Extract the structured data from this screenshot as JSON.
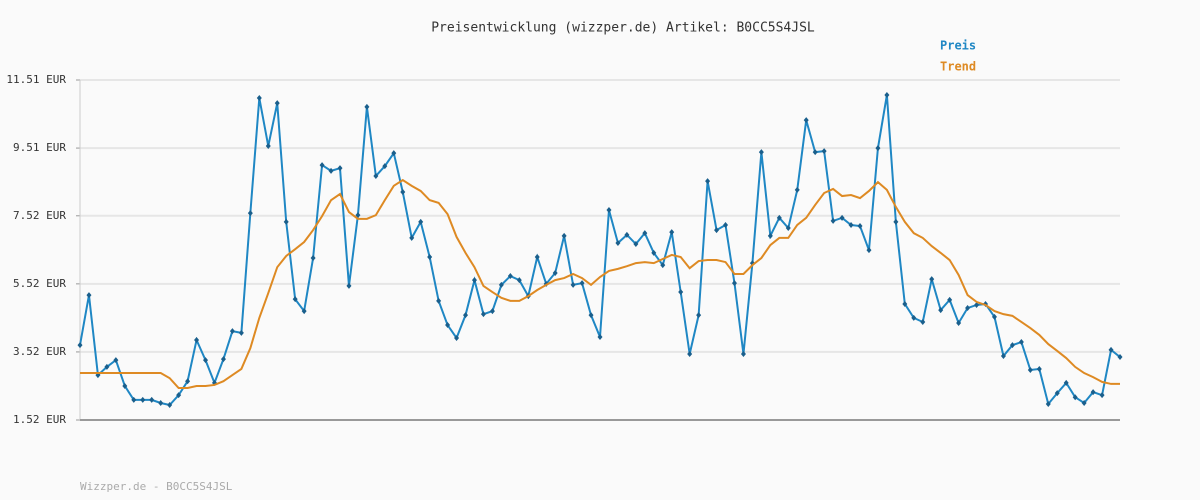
{
  "chart_data": {
    "type": "line",
    "title": "Preisentwicklung (wizzper.de) Artikel: B0CC5S4JSL",
    "footer": "Wizzper.de - B0CC5S4JSL",
    "ylim": [
      1.52,
      11.51
    ],
    "yticks": [
      {
        "value": 1.52,
        "label": "1.52 EUR"
      },
      {
        "value": 3.52,
        "label": "3.52 EUR"
      },
      {
        "value": 5.52,
        "label": "5.52 EUR"
      },
      {
        "value": 7.52,
        "label": "7.52 EUR"
      },
      {
        "value": 9.51,
        "label": "9.51 EUR"
      },
      {
        "value": 11.51,
        "label": "11.51 EUR"
      }
    ],
    "grid": true,
    "legend": "top-right",
    "series": [
      {
        "name": "Preis",
        "color": "#1f87c4",
        "markers": true,
        "values": [
          3.72,
          5.19,
          2.84,
          3.08,
          3.28,
          2.52,
          2.11,
          2.11,
          2.11,
          2.02,
          1.96,
          2.25,
          2.66,
          3.87,
          3.28,
          2.61,
          3.31,
          4.13,
          4.08,
          7.6,
          10.98,
          9.57,
          10.83,
          7.34,
          5.07,
          4.72,
          6.28,
          9.01,
          8.84,
          8.92,
          5.46,
          7.54,
          10.72,
          8.69,
          8.98,
          9.36,
          8.22,
          6.87,
          7.34,
          6.31,
          5.02,
          4.31,
          3.93,
          4.6,
          5.63,
          4.63,
          4.72,
          5.49,
          5.75,
          5.63,
          5.16,
          6.31,
          5.52,
          5.84,
          6.93,
          5.49,
          5.54,
          4.6,
          3.96,
          7.69,
          6.72,
          6.96,
          6.69,
          7.01,
          6.43,
          6.07,
          7.04,
          5.28,
          3.46,
          4.6,
          8.54,
          7.1,
          7.25,
          5.54,
          3.46,
          6.13,
          9.39,
          6.93,
          7.46,
          7.16,
          8.28,
          10.33,
          9.39,
          9.42,
          7.37,
          7.46,
          7.25,
          7.22,
          6.51,
          9.51,
          11.07,
          7.34,
          4.93,
          4.52,
          4.4,
          5.66,
          4.75,
          5.05,
          4.37,
          4.81,
          4.9,
          4.93,
          4.55,
          3.4,
          3.72,
          3.81,
          2.99,
          3.02,
          1.99,
          2.31,
          2.61,
          2.19,
          2.02,
          2.34,
          2.25,
          3.58,
          3.37
        ]
      },
      {
        "name": "Trend",
        "color": "#de8a23",
        "markers": false,
        "values": [
          2.9,
          2.9,
          2.9,
          2.9,
          2.9,
          2.9,
          2.9,
          2.9,
          2.9,
          2.9,
          2.75,
          2.46,
          2.46,
          2.52,
          2.52,
          2.55,
          2.66,
          2.84,
          3.02,
          3.63,
          4.52,
          5.25,
          6.01,
          6.34,
          6.54,
          6.75,
          7.1,
          7.51,
          7.98,
          8.16,
          7.63,
          7.43,
          7.43,
          7.54,
          7.98,
          8.4,
          8.57,
          8.4,
          8.25,
          7.98,
          7.9,
          7.57,
          6.9,
          6.43,
          6.01,
          5.46,
          5.28,
          5.11,
          5.02,
          5.02,
          5.16,
          5.34,
          5.49,
          5.63,
          5.69,
          5.81,
          5.69,
          5.49,
          5.72,
          5.9,
          5.96,
          6.04,
          6.13,
          6.16,
          6.13,
          6.25,
          6.37,
          6.31,
          5.98,
          6.19,
          6.22,
          6.22,
          6.16,
          5.81,
          5.81,
          6.07,
          6.28,
          6.66,
          6.87,
          6.87,
          7.25,
          7.46,
          7.84,
          8.19,
          8.31,
          8.1,
          8.13,
          8.04,
          8.25,
          8.51,
          8.28,
          7.78,
          7.34,
          7.01,
          6.87,
          6.63,
          6.43,
          6.22,
          5.78,
          5.19,
          4.99,
          4.9,
          4.72,
          4.63,
          4.58,
          4.4,
          4.22,
          4.02,
          3.75,
          3.55,
          3.34,
          3.08,
          2.9,
          2.78,
          2.64,
          2.58,
          2.58
        ]
      }
    ]
  }
}
